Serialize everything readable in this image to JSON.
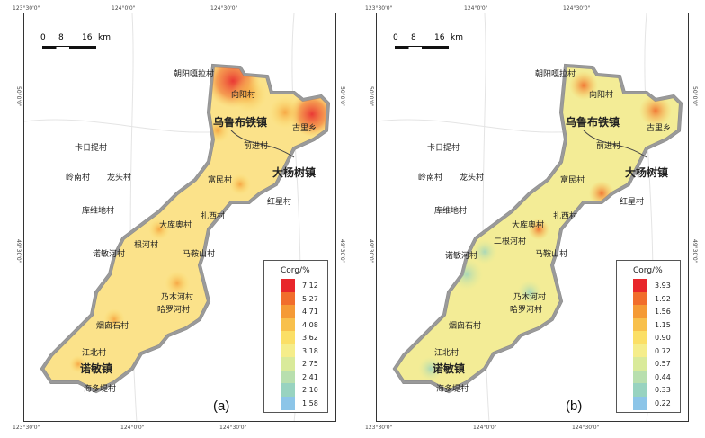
{
  "scale": {
    "ticks": [
      "0",
      "8",
      "16"
    ],
    "unit": "km"
  },
  "panels": [
    {
      "label": "(a)",
      "coords": {
        "top": [
          "123°30'0\"",
          "124°0'0\"",
          "124°30'0\""
        ],
        "bottom": [
          "123°30'0\"",
          "124°0'0\"",
          "124°30'0\""
        ],
        "left": [
          "50°0'0\"",
          "49°30'0\""
        ],
        "right": [
          "50°0'0\"",
          "49°30'0\""
        ]
      },
      "legend_title": "Corg/%",
      "legend_values": [
        "7.12",
        "5.27",
        "4.71",
        "4.08",
        "3.62",
        "3.18",
        "2.75",
        "2.41",
        "2.10",
        "1.58"
      ],
      "legend_colors": [
        "#e8262b",
        "#f16d2c",
        "#f59a35",
        "#f8c04c",
        "#fbdf66",
        "#f5ed8a",
        "#d9ea9a",
        "#b8dfae",
        "#98d3c0",
        "#8cc5e8"
      ],
      "places": [
        "朝阳嘎拉村",
        "向阳村",
        "乌鲁布铁镇",
        "古里乡",
        "前进村",
        "卡日提村",
        "岭南村",
        "龙头村",
        "库维地村",
        "富民村",
        "大杨树镇",
        "红星村",
        "扎西村",
        "大库奥村",
        "诺敏河村",
        "根河村",
        "马鞍山村",
        "乃木河村",
        "哈罗河村",
        "烟囱石村",
        "江北村",
        "诺敏镇",
        "海多堤村"
      ]
    },
    {
      "label": "(b)",
      "coords": {
        "top": [
          "123°30'0\"",
          "124°0'0\"",
          "124°30'0\""
        ],
        "bottom": [
          "123°30'0\"",
          "124°0'0\"",
          "124°30'0\""
        ],
        "left": [
          "50°0'0\"",
          "49°30'0\""
        ],
        "right": [
          "50°0'0\"",
          "49°30'0\""
        ]
      },
      "legend_title": "Corg/%",
      "legend_values": [
        "3.93",
        "1.92",
        "1.56",
        "1.15",
        "0.90",
        "0.72",
        "0.57",
        "0.44",
        "0.33",
        "0.22"
      ],
      "legend_colors": [
        "#e8262b",
        "#f16d2c",
        "#f59a35",
        "#f8c04c",
        "#fbdf66",
        "#f5ed8a",
        "#d9ea9a",
        "#b8dfae",
        "#98d3c0",
        "#8cc5e8"
      ],
      "places": [
        "朝阳嘎拉村",
        "向阳村",
        "乌鲁布铁镇",
        "古里乡",
        "前进村",
        "卡日提村",
        "岭南村",
        "龙头村",
        "库维地村",
        "富民村",
        "大杨树镇",
        "红星村",
        "扎西村",
        "大库奥村",
        "二根河村",
        "诺敏河村",
        "马鞍山村",
        "乃木河村",
        "哈罗河村",
        "烟囱石村",
        "江北村",
        "诺敏镇",
        "海多堤村"
      ]
    }
  ]
}
